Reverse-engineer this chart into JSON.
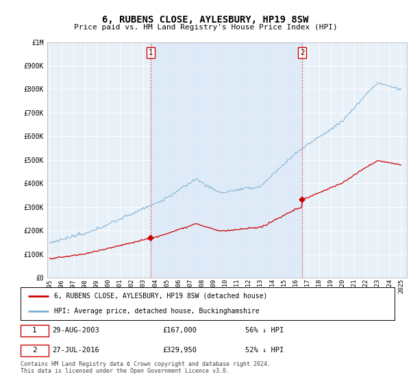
{
  "title": "6, RUBENS CLOSE, AYLESBURY, HP19 8SW",
  "subtitle": "Price paid vs. HM Land Registry's House Price Index (HPI)",
  "ylim": [
    0,
    1000000
  ],
  "yticks": [
    0,
    100000,
    200000,
    300000,
    400000,
    500000,
    600000,
    700000,
    800000,
    900000,
    1000000
  ],
  "ytick_labels": [
    "£0",
    "£100K",
    "£200K",
    "£300K",
    "£400K",
    "£500K",
    "£600K",
    "£700K",
    "£800K",
    "£900K",
    "£1M"
  ],
  "hpi_color": "#7bafd4",
  "hpi_fill_color": "#ddeaf7",
  "price_color": "#cc0000",
  "vline_color": "#cc0000",
  "sale1_year": 2003.65,
  "sale1_price": 167000,
  "sale2_year": 2016.57,
  "sale2_price": 329950,
  "legend_label_red": "6, RUBENS CLOSE, AYLESBURY, HP19 8SW (detached house)",
  "legend_label_blue": "HPI: Average price, detached house, Buckinghamshire",
  "footnote": "Contains HM Land Registry data © Crown copyright and database right 2024.\nThis data is licensed under the Open Government Licence v3.0.",
  "bg_color": "#ffffff",
  "plot_bg_color": "#e8f0f8"
}
